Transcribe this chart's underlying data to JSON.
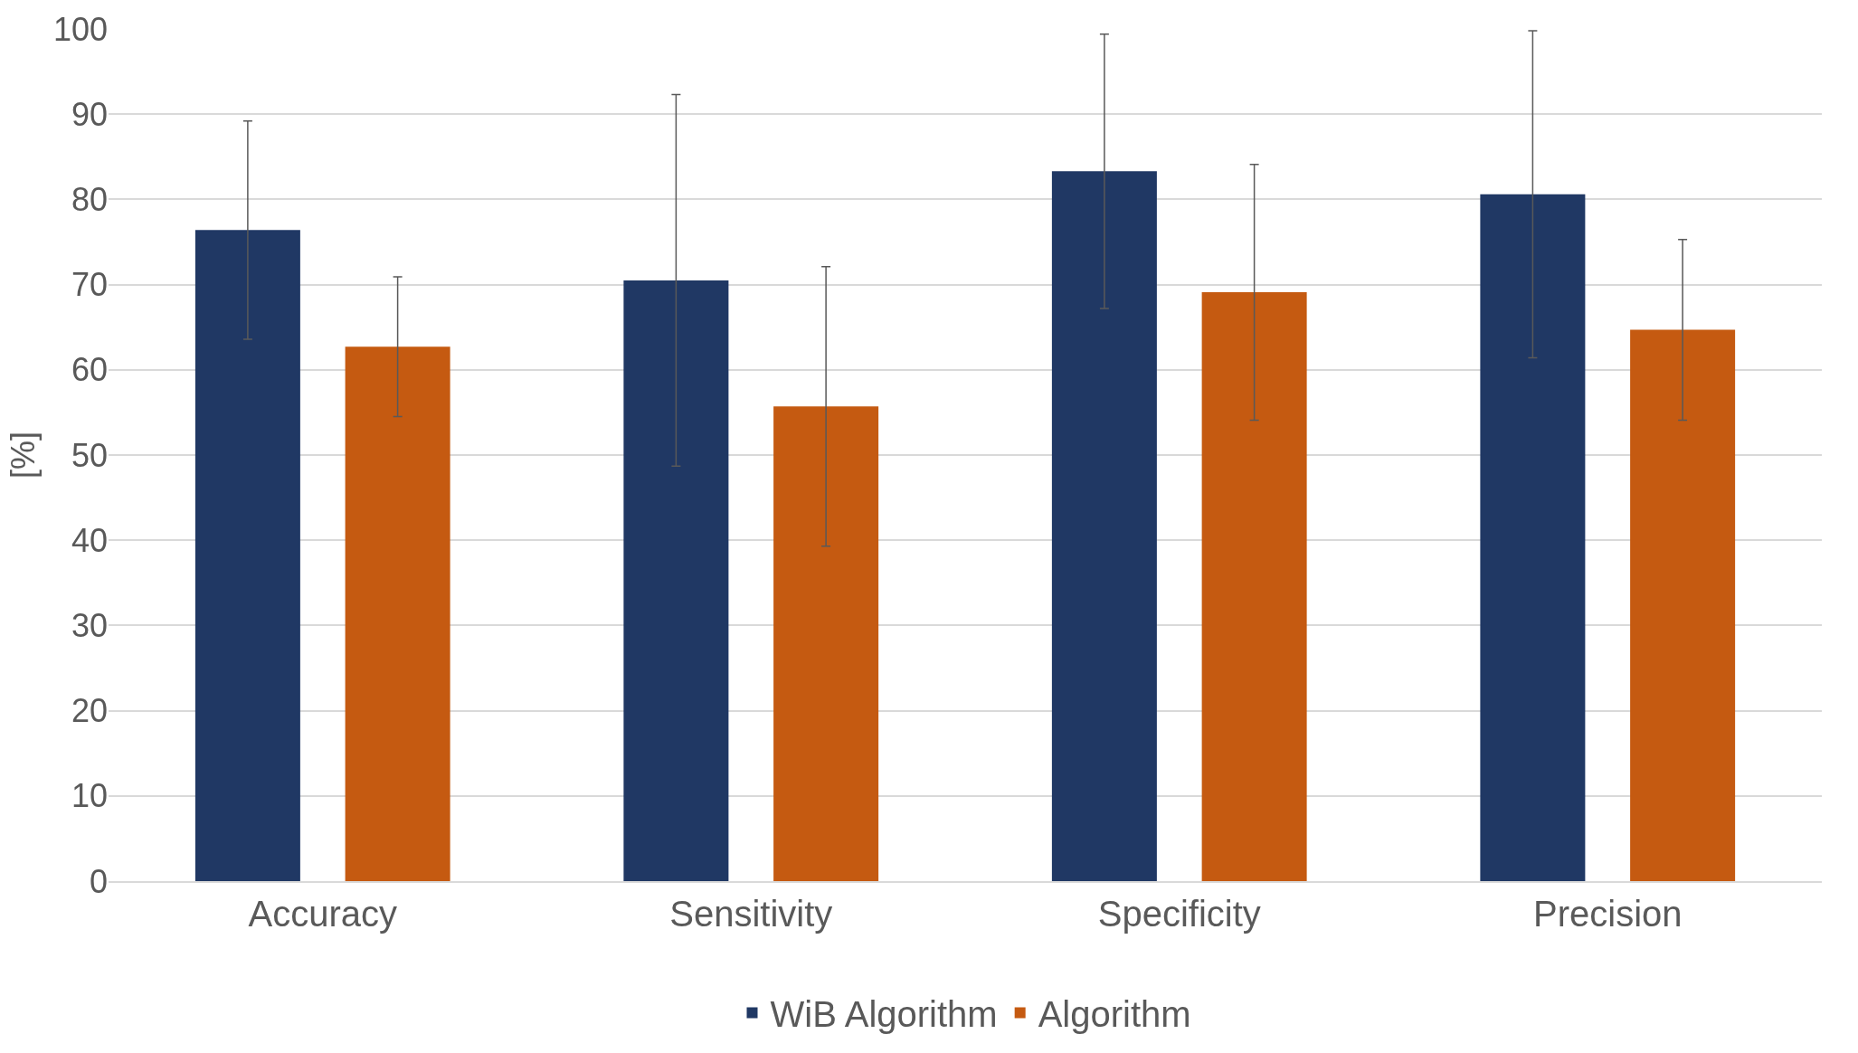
{
  "chart_data": {
    "type": "bar",
    "ylabel": "[%]",
    "categories": [
      "Accuracy",
      "Sensitivity",
      "Specificity",
      "Precision"
    ],
    "series": [
      {
        "name": "WiB Algorithm",
        "color": "#203864",
        "values": [
          76.4,
          70.5,
          83.3,
          80.6
        ],
        "errors": [
          12.8,
          21.8,
          16.1,
          19.2
        ]
      },
      {
        "name": "Algorithm",
        "color": "#c55a11",
        "values": [
          62.7,
          55.7,
          69.1,
          64.7
        ],
        "errors": [
          8.2,
          16.4,
          15,
          10.6
        ]
      }
    ],
    "ylim": [
      0,
      100
    ],
    "yticks": [
      0,
      10,
      20,
      30,
      40,
      50,
      60,
      70,
      80,
      90,
      100
    ],
    "grid": "y",
    "legend": "bottom"
  }
}
